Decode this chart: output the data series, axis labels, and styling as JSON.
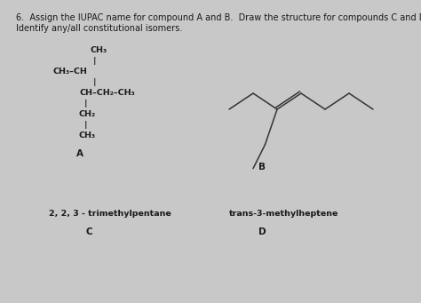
{
  "background_color": "#c8c8c8",
  "title_line1": "6.  Assign the IUPAC name for compound A and B.  Draw the structure for compounds C and D.",
  "title_line2": "Identify any/all constitutional isomers.",
  "title_fontsize": 7.0,
  "label_fontsize": 7.5,
  "struct_fontsize": 6.8,
  "line_color": "#1a1a1a",
  "text_color": "#1a1a1a",
  "label_A": "A",
  "label_B": "B",
  "label_C": "C",
  "label_D": "D",
  "text_C": "2, 2, 3 - trimethylpentane",
  "text_D": "trans-3-methylheptene",
  "struct_B_color": "#333333",
  "struct_B_lw": 1.1
}
